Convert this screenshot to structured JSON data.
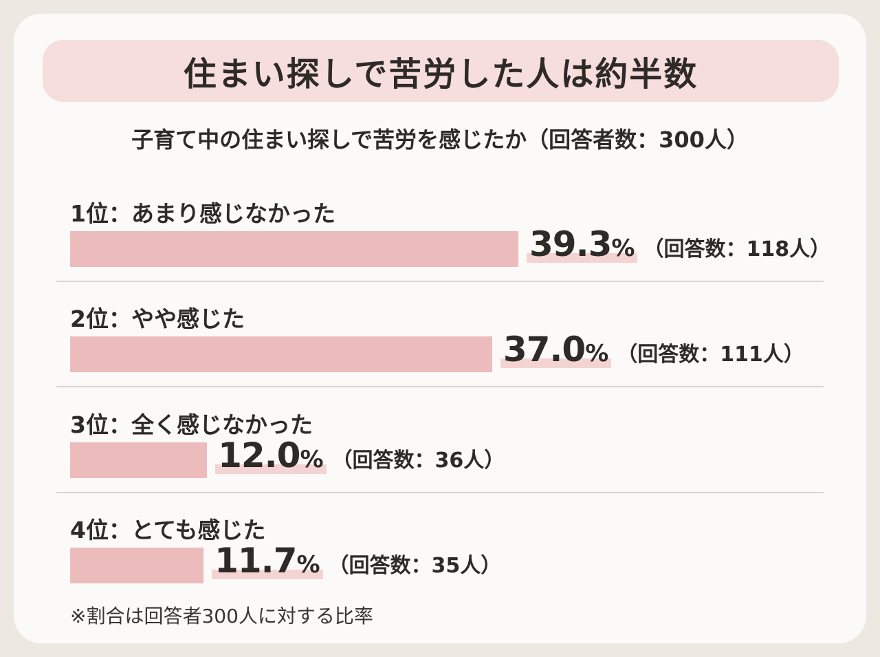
{
  "title": "住まい探しで苦労した人は約半数",
  "chart_data": {
    "type": "bar",
    "title": "子育て中の住まい探しで苦労を感じたか（回答者数：300人）",
    "categories": [
      "1位：あまり感じなかった",
      "2位：やや感じた",
      "3位：全く感じなかった",
      "4位：とても感じた"
    ],
    "values": [
      39.3,
      37.0,
      12.0,
      11.7
    ],
    "value_labels": [
      "39.3",
      "37.0",
      "12.0",
      "11.7"
    ],
    "percent_sign": "%",
    "counts": [
      "（回答数：118人）",
      "（回答数：111人）",
      "（回答数：36人）",
      "（回答数：35人）"
    ],
    "orientation": "horizontal",
    "bar_color": "#ecbcbc"
  },
  "footnote": "※割合は回答者300人に対する比率"
}
